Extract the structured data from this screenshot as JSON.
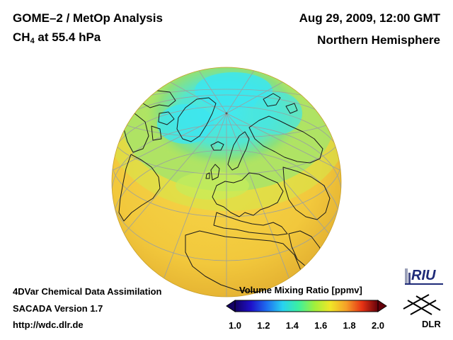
{
  "header": {
    "title": "GOME–2 / MetOp Analysis",
    "species": "CH",
    "species_sub": "4",
    "level": "at 55.4 hPa",
    "datetime": "Aug 29, 2009, 12:00 GMT",
    "region": "Northern Hemisphere"
  },
  "footer": {
    "line1": "4DVar Chemical Data Assimilation",
    "line2": "SACADA Version 1.7",
    "line3": "http://wdc.dlr.de"
  },
  "colorbar": {
    "title": "Volume Mixing Ratio [ppmv]",
    "min": 1.0,
    "max": 2.0,
    "ticks": [
      "1.0",
      "1.2",
      "1.4",
      "1.6",
      "1.8",
      "2.0"
    ],
    "colors": [
      "#140064",
      "#1e10c8",
      "#1e6ef0",
      "#28d2f0",
      "#3cf0a0",
      "#a0f03c",
      "#f0e628",
      "#f5a028",
      "#e63214",
      "#64000a"
    ]
  },
  "map": {
    "projection": "orthographic",
    "hemisphere": "Northern Hemisphere",
    "background_value": 1.67,
    "polar_value": 1.35,
    "colors": {
      "globe_fill": "#f0c83c",
      "ring_green": "#b8e65a",
      "polar_cyan": "#3ce6f0",
      "mid_green": "#7ee08c",
      "land_outline": "#1a1a1a",
      "graticule": "#9aa0a0"
    }
  },
  "logos": {
    "riu_text": "RIU",
    "dlr_text": "DLR"
  }
}
